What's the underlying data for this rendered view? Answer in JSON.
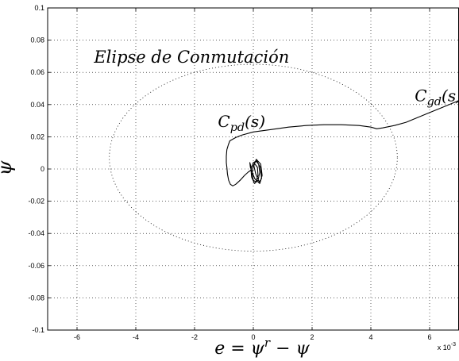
{
  "chart_data": {
    "type": "line",
    "xlabel": "e = ψ^r − ψ",
    "ylabel": "ψ̇",
    "x_multiplier_label": "x 10",
    "x_multiplier_exp": "-3",
    "xlim": [
      -0.007,
      0.007
    ],
    "ylim": [
      -0.1,
      0.1
    ],
    "x_ticks": [
      -0.006,
      -0.004,
      -0.002,
      0,
      0.002,
      0.004,
      0.006
    ],
    "x_tick_labels": [
      "-6",
      "-4",
      "-2",
      "0",
      "2",
      "4",
      "6"
    ],
    "y_ticks": [
      -0.1,
      -0.08,
      -0.06,
      -0.04,
      -0.02,
      0,
      0.02,
      0.04,
      0.06,
      0.08,
      0.1
    ],
    "y_tick_labels": [
      "-0.1",
      "-0.08",
      "-0.06",
      "-0.04",
      "-0.02",
      "0",
      "0.02",
      "0.04",
      "0.06",
      "0.08",
      "0.1"
    ],
    "grid": true,
    "annotations": [
      {
        "text": "Elipse de Conmutación",
        "x": -0.0021,
        "y": 0.066
      },
      {
        "text": "C_pd(s)",
        "x": -0.0004,
        "y": 0.026
      },
      {
        "text": "C_gd(s)",
        "x": 0.0063,
        "y": 0.042
      }
    ],
    "ellipse": {
      "center": [
        0,
        0.007
      ],
      "semi_axis_x": 0.0049,
      "semi_axis_y": 0.058,
      "style": "dotted"
    },
    "series": [
      {
        "style": "solid",
        "x": [
          0.0072,
          0.0068,
          0.0064,
          0.006,
          0.0056,
          0.0052,
          0.0048,
          0.0044,
          0.0042,
          0.004,
          0.0036,
          0.003,
          0.0024,
          0.0018,
          0.0012,
          0.0006,
          0.0,
          -0.0004,
          -0.0006,
          -0.0008,
          -0.00085,
          -0.0009,
          -0.00092,
          -0.00092,
          -0.0009,
          -0.00088,
          -0.00084,
          -0.00078,
          -0.0007,
          -0.0006,
          -0.00045,
          -0.0003,
          -0.00018,
          -0.0001,
          -6e-05
        ],
        "y": [
          0.044,
          0.041,
          0.038,
          0.035,
          0.032,
          0.029,
          0.027,
          0.0255,
          0.025,
          0.026,
          0.027,
          0.0275,
          0.0275,
          0.027,
          0.026,
          0.0245,
          0.023,
          0.021,
          0.0195,
          0.0175,
          0.015,
          0.012,
          0.008,
          0.004,
          0.001,
          -0.003,
          -0.007,
          -0.0095,
          -0.0105,
          -0.0095,
          -0.007,
          -0.004,
          -0.002,
          -0.001,
          0.0
        ]
      },
      {
        "style": "solid",
        "x": [
          -6e-05,
          -0.00012,
          -0.0001,
          5e-05,
          0.00022,
          0.0003,
          0.00025,
          0.0001,
          2e-05,
          8e-05,
          0.0002,
          0.00028,
          0.00024,
          0.00012,
          0.0,
          -8e-05,
          -6e-05,
          4e-05,
          0.00016,
          0.00022,
          0.00018,
          8e-05,
          0.0,
          -4e-05,
          0.0,
          8e-05,
          0.00016,
          0.00014,
          6e-05
        ],
        "y": [
          0.0,
          0.004,
          0.001,
          -0.006,
          -0.009,
          -0.004,
          0.003,
          0.006,
          0.002,
          -0.003,
          -0.008,
          -0.006,
          0.001,
          0.005,
          0.004,
          0.0,
          -0.005,
          -0.009,
          -0.007,
          -0.002,
          0.003,
          0.005,
          0.002,
          -0.003,
          -0.007,
          -0.008,
          -0.004,
          0.001,
          0.003
        ]
      }
    ]
  }
}
